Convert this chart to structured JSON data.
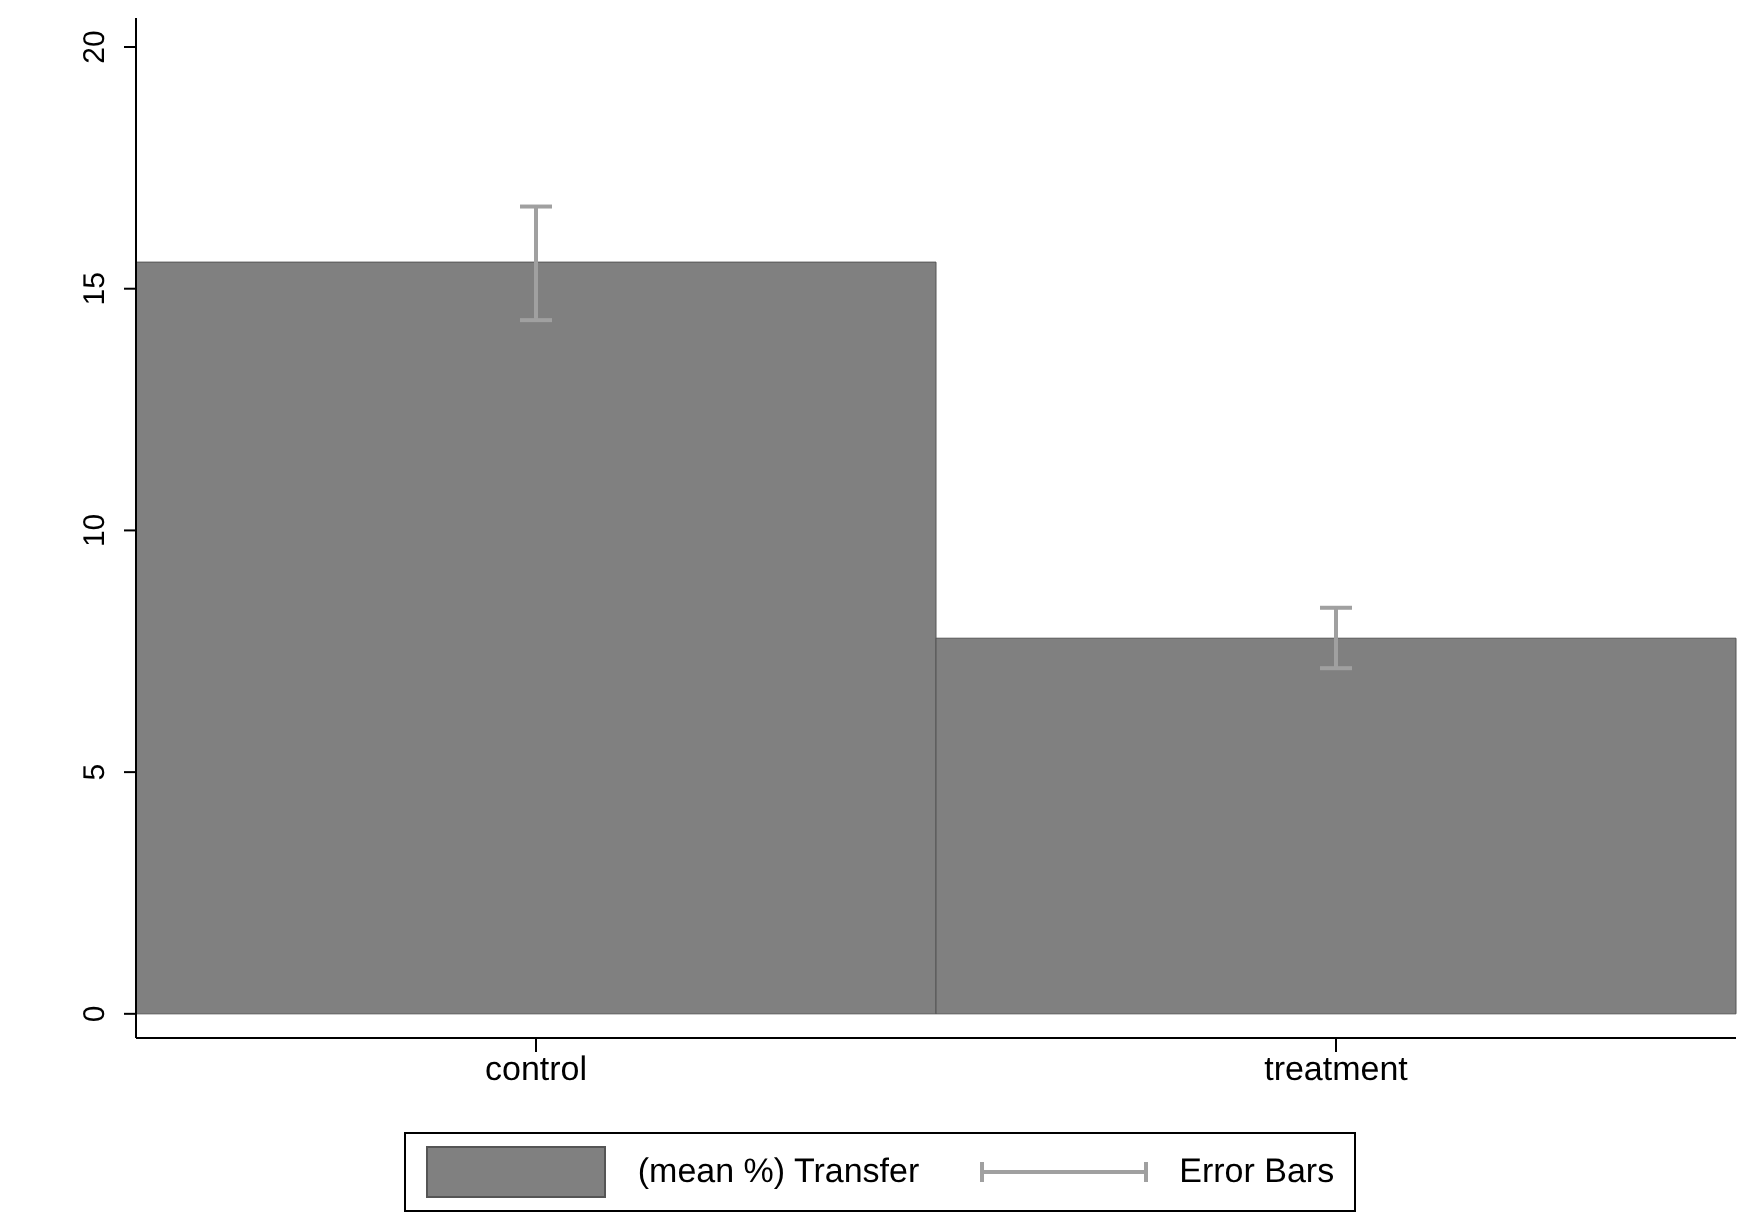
{
  "chart_data": {
    "type": "bar",
    "categories": [
      "control",
      "treatment"
    ],
    "series": [
      {
        "name": "(mean %) Transfer",
        "color": "#808080",
        "values": [
          15.55,
          7.77
        ],
        "errors": [
          [
            14.35,
            16.7
          ],
          [
            7.15,
            8.4
          ]
        ]
      }
    ],
    "ylim": [
      -0.5,
      20.6
    ],
    "yticks": [
      0,
      5,
      10,
      15,
      20
    ],
    "legend": "bottom",
    "annotations": [
      "Error Bars"
    ]
  }
}
